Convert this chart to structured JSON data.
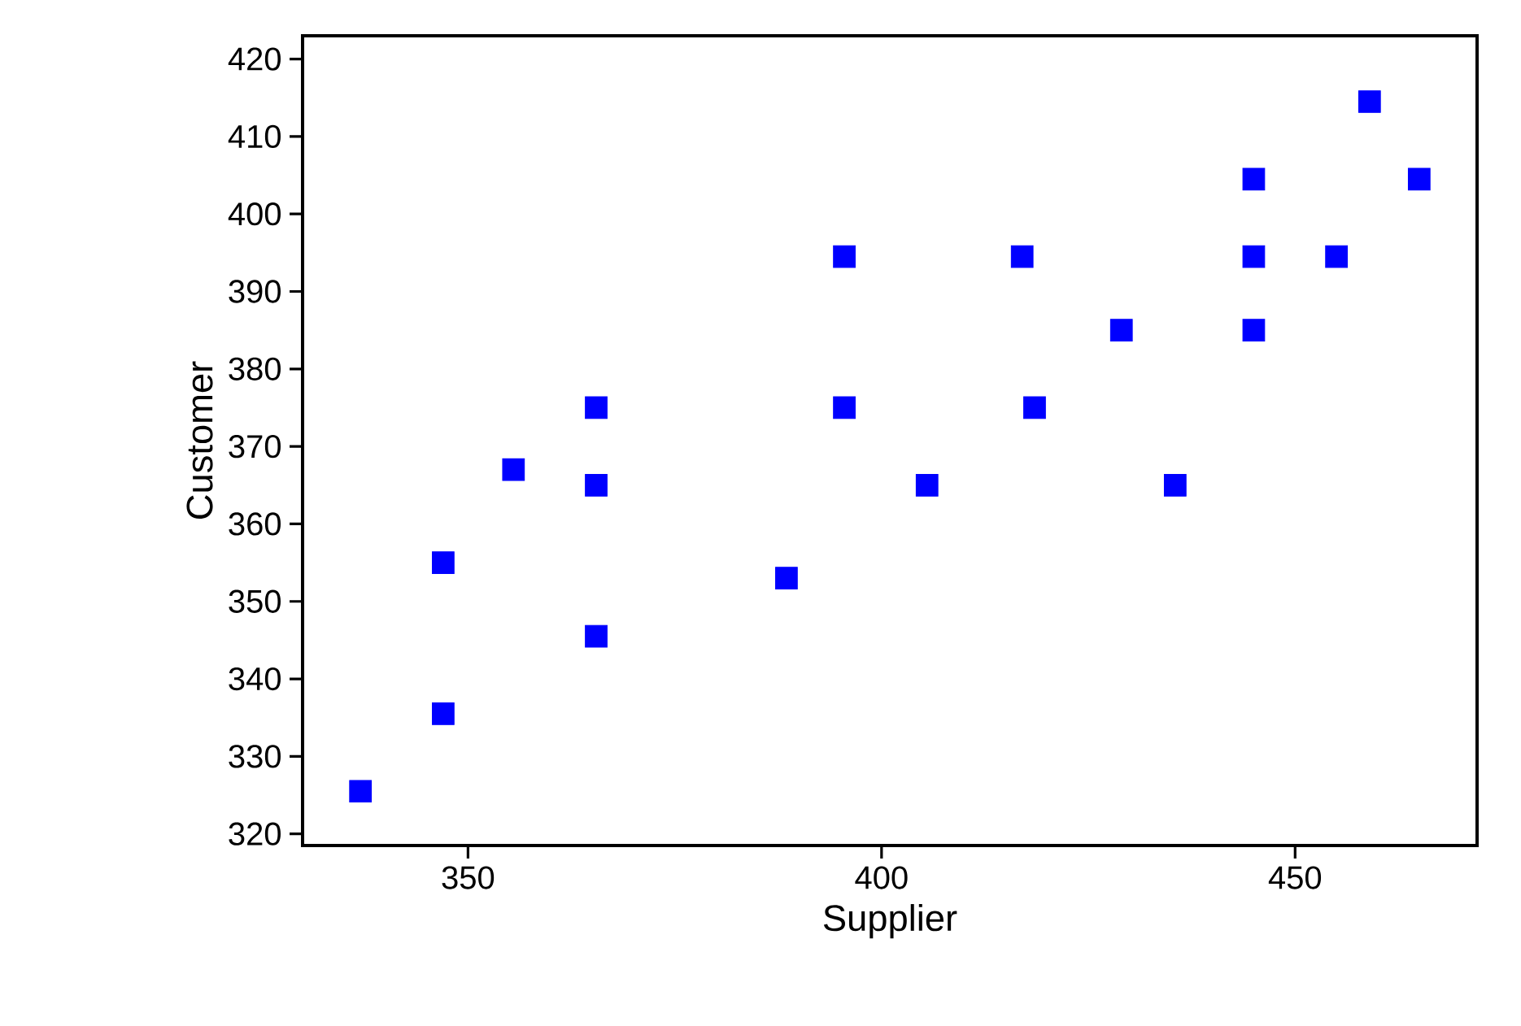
{
  "chart_data": {
    "type": "scatter",
    "xlabel": "Supplier",
    "ylabel": "Customer",
    "x": [
      337,
      347,
      347,
      355.5,
      365.5,
      365.5,
      365.5,
      388.5,
      395.5,
      395.5,
      405.5,
      417,
      418.5,
      429,
      435.5,
      445,
      445,
      445,
      455,
      459,
      465
    ],
    "values": [
      325.5,
      335.5,
      355,
      367,
      375,
      365,
      345.5,
      353,
      394.5,
      375,
      365,
      394.5,
      375,
      385,
      365,
      404.5,
      394.5,
      385,
      394.5,
      414.5,
      404.5
    ],
    "color": "#0000ff",
    "marker": "square",
    "xlim": [
      330,
      472
    ],
    "ylim": [
      318.5,
      423
    ],
    "xticks": [
      350,
      400,
      450
    ],
    "yticks": [
      320,
      330,
      340,
      350,
      360,
      370,
      380,
      390,
      400,
      410,
      420
    ],
    "grid": false
  }
}
